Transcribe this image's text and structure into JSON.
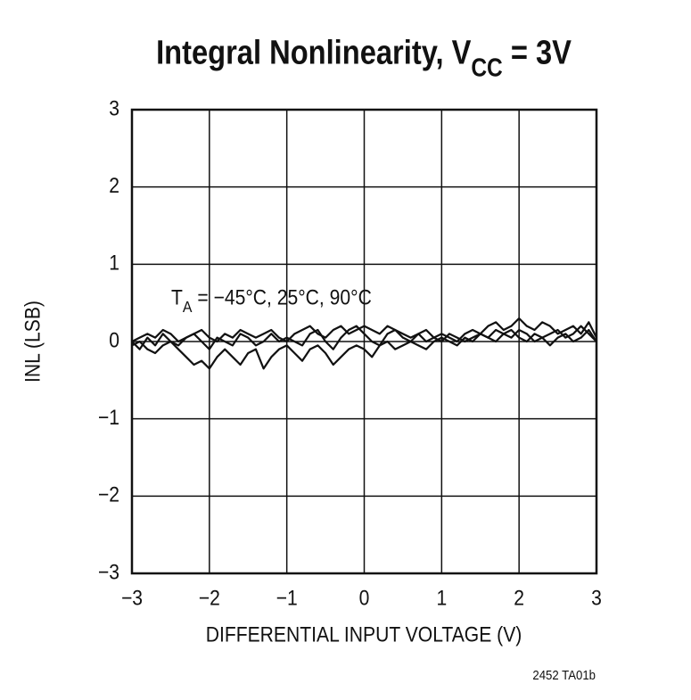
{
  "chart_data": {
    "type": "line",
    "title": [
      {
        "text": "Integral Nonlinearity, V"
      },
      {
        "text": "CC",
        "sub": true
      },
      {
        "text": " = 3V"
      }
    ],
    "annotation": [
      {
        "text": "T"
      },
      {
        "text": "A",
        "sub": true
      },
      {
        "text": " = −45°C, 25°C, 90°C"
      }
    ],
    "xlabel": "DIFFERENTIAL INPUT VOLTAGE (V)",
    "ylabel": "INL (LSB)",
    "footnote": "2452 TA01b",
    "xlim": [
      -3,
      3
    ],
    "ylim": [
      -3,
      3
    ],
    "xticks": [
      {
        "value": -3,
        "label": "−3"
      },
      {
        "value": -2,
        "label": "−2"
      },
      {
        "value": -1,
        "label": "−1"
      },
      0,
      1,
      2,
      3
    ],
    "yticks": [
      {
        "value": -3,
        "label": "−3"
      },
      {
        "value": -2,
        "label": "−2"
      },
      {
        "value": -1,
        "label": "−1"
      },
      0,
      1,
      2,
      3
    ],
    "grid": true,
    "x": [
      -3,
      -2.9,
      -2.8,
      -2.7,
      -2.6,
      -2.5,
      -2.4,
      -2.3,
      -2.2,
      -2.1,
      -2,
      -1.9,
      -1.8,
      -1.7,
      -1.6,
      -1.5,
      -1.4,
      -1.3,
      -1.2,
      -1.1,
      -1,
      -0.9,
      -0.8,
      -0.7,
      -0.6,
      -0.5,
      -0.4,
      -0.3,
      -0.2,
      -0.1,
      0,
      0.1,
      0.2,
      0.3,
      0.4,
      0.5,
      0.6,
      0.7,
      0.8,
      0.9,
      1,
      1.1,
      1.2,
      1.3,
      1.4,
      1.5,
      1.6,
      1.7,
      1.8,
      1.9,
      2,
      2.1,
      2.2,
      2.3,
      2.4,
      2.5,
      2.6,
      2.7,
      2.8,
      2.9,
      3
    ],
    "series": [
      {
        "color": "#111111",
        "values": [
          0.0,
          0.05,
          0.1,
          0.05,
          0.15,
          0.1,
          0.0,
          0.05,
          0.1,
          0.15,
          0.05,
          0.0,
          0.1,
          0.05,
          0.15,
          0.1,
          0.05,
          0.1,
          0.15,
          0.05,
          0.0,
          0.1,
          0.15,
          0.2,
          0.1,
          0.05,
          0.15,
          0.2,
          0.1,
          0.15,
          0.2,
          0.15,
          0.1,
          0.2,
          0.15,
          0.1,
          0.05,
          0.1,
          0.0,
          0.05,
          0.1,
          0.05,
          0.0,
          0.1,
          0.15,
          0.1,
          0.2,
          0.25,
          0.15,
          0.2,
          0.3,
          0.2,
          0.15,
          0.25,
          0.2,
          0.1,
          0.15,
          0.2,
          0.1,
          0.25,
          0.05
        ]
      },
      {
        "color": "#111111",
        "values": [
          -0.05,
          0.0,
          -0.1,
          -0.15,
          -0.05,
          0.0,
          -0.1,
          -0.2,
          -0.3,
          -0.25,
          -0.35,
          -0.2,
          -0.1,
          -0.2,
          -0.3,
          -0.15,
          -0.1,
          -0.35,
          -0.2,
          -0.1,
          -0.05,
          -0.15,
          -0.25,
          -0.1,
          -0.05,
          -0.15,
          -0.3,
          -0.2,
          -0.1,
          -0.05,
          -0.1,
          -0.2,
          -0.05,
          0.0,
          -0.1,
          -0.05,
          0.0,
          -0.05,
          -0.1,
          0.0,
          0.05,
          0.0,
          -0.05,
          0.05,
          0.0,
          0.1,
          0.05,
          0.15,
          0.1,
          0.05,
          0.15,
          0.1,
          0.0,
          0.05,
          0.1,
          0.15,
          0.05,
          0.1,
          0.2,
          0.1,
          0.0
        ]
      },
      {
        "color": "#111111",
        "values": [
          0.0,
          -0.1,
          0.05,
          -0.05,
          0.1,
          0.0,
          -0.05,
          0.05,
          0.1,
          0.0,
          -0.1,
          0.05,
          0.0,
          -0.05,
          0.1,
          0.05,
          -0.05,
          0.0,
          0.1,
          0.0,
          0.05,
          0.0,
          -0.05,
          0.1,
          0.15,
          0.0,
          -0.1,
          0.05,
          0.15,
          0.2,
          0.1,
          0.0,
          -0.05,
          0.1,
          0.15,
          0.05,
          0.0,
          0.1,
          0.15,
          0.05,
          0.0,
          0.1,
          0.05,
          0.0,
          0.05,
          0.1,
          0.05,
          0.0,
          0.1,
          0.15,
          0.05,
          0.0,
          0.1,
          0.05,
          -0.05,
          0.05,
          0.1,
          0.0,
          0.05,
          0.15,
          0.0
        ]
      }
    ]
  }
}
